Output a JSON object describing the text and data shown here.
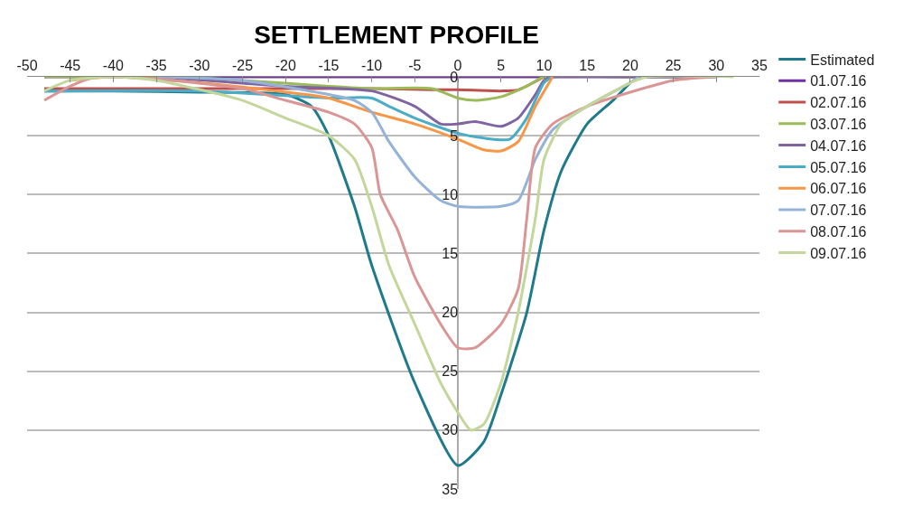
{
  "chart_data": {
    "type": "line",
    "title": "SETTLEMENT PROFILE",
    "xlim": [
      -50,
      35
    ],
    "xticks": [
      -50,
      -45,
      -40,
      -35,
      -30,
      -25,
      -20,
      -15,
      -10,
      -5,
      0,
      5,
      10,
      15,
      20,
      25,
      30,
      35
    ],
    "ylim": [
      35,
      0
    ],
    "yticks": [
      0,
      5,
      10,
      15,
      20,
      25,
      30,
      35
    ],
    "grid": "y",
    "legend": "right",
    "marker": "none",
    "line_style": "solid",
    "series": [
      {
        "name": "Estimated",
        "color": "#1f7a8c",
        "x": [
          -48,
          -40,
          -30,
          -20,
          -17,
          -15,
          -12,
          -10,
          -5,
          0,
          3,
          5,
          8,
          10,
          12,
          15,
          18,
          20
        ],
        "values": [
          1.2,
          1.2,
          1.3,
          1.5,
          2.5,
          5,
          11,
          16,
          26,
          33,
          31,
          27,
          20,
          13,
          8,
          4,
          2,
          0.5
        ]
      },
      {
        "name": "01.07.16",
        "color": "#7030a0",
        "x": [
          -48,
          -30,
          -10,
          0,
          10,
          20,
          30
        ],
        "values": [
          0,
          0,
          0,
          0,
          0,
          0,
          0
        ]
      },
      {
        "name": "02.07.16",
        "color": "#c0504d",
        "x": [
          -48,
          -30,
          -10,
          -3,
          0,
          5,
          7,
          10
        ],
        "values": [
          1,
          1,
          1,
          1.1,
          1.1,
          1.2,
          1.1,
          0
        ]
      },
      {
        "name": "03.07.16",
        "color": "#9bbb59",
        "x": [
          -48,
          -35,
          -25,
          -15,
          -10,
          -3,
          0,
          2,
          5,
          8,
          10,
          20,
          30
        ],
        "values": [
          0,
          0,
          0.3,
          0.8,
          1,
          1,
          1.8,
          2,
          1.7,
          0.8,
          0,
          0,
          0
        ]
      },
      {
        "name": "04.07.16",
        "color": "#8064a2",
        "x": [
          -35,
          -20,
          -10,
          -5,
          -2,
          0,
          2,
          5,
          7,
          9,
          10,
          11,
          20,
          28
        ],
        "values": [
          0,
          0.8,
          1.2,
          2.5,
          4,
          4,
          3.8,
          4.2,
          3.5,
          1.5,
          0.3,
          0,
          0,
          0
        ]
      },
      {
        "name": "05.07.16",
        "color": "#4bacc6",
        "x": [
          -48,
          -30,
          -15,
          -10,
          -8,
          -5,
          0,
          3,
          6,
          8,
          10,
          11
        ],
        "values": [
          1.2,
          1.2,
          1.8,
          1.8,
          2.5,
          3.5,
          4.8,
          5.2,
          5.3,
          3.5,
          0.5,
          0
        ]
      },
      {
        "name": "06.07.16",
        "color": "#f79646",
        "x": [
          -45,
          -40,
          -30,
          -20,
          -15,
          -10,
          -5,
          0,
          3,
          5,
          7,
          9,
          11
        ],
        "values": [
          0.3,
          0,
          0.5,
          1.3,
          1.8,
          3,
          4,
          5.3,
          6.2,
          6.3,
          5.5,
          2.5,
          0
        ]
      },
      {
        "name": "07.07.16",
        "color": "#95b3d7",
        "x": [
          -35,
          -25,
          -15,
          -12,
          -10,
          -8,
          -5,
          -2,
          0,
          5,
          7,
          9,
          11,
          15,
          20,
          21
        ],
        "values": [
          0,
          0.3,
          1.5,
          2,
          3,
          5.5,
          8.5,
          10.5,
          11,
          11,
          10.5,
          7,
          4.5,
          2.5,
          0.5,
          0
        ]
      },
      {
        "name": "08.07.16",
        "color": "#d99694",
        "x": [
          -48,
          -45,
          -42,
          -35,
          -25,
          -20,
          -15,
          -12,
          -10,
          -9,
          -7,
          -5,
          -2,
          0,
          2,
          5,
          7,
          8,
          9,
          11,
          15,
          20,
          25,
          30
        ],
        "values": [
          2,
          0.8,
          0,
          0.2,
          1,
          2,
          3,
          4,
          6,
          10,
          13,
          17,
          21,
          23,
          23,
          21,
          18,
          12,
          6,
          4,
          2.5,
          1.3,
          0.3,
          0
        ]
      },
      {
        "name": "09.07.16",
        "color": "#c3d69b",
        "x": [
          -48,
          -45,
          -40,
          -35,
          -25,
          -20,
          -15,
          -12,
          -10,
          -8,
          -5,
          -2,
          0,
          1.5,
          3,
          5,
          7,
          9,
          10,
          12,
          15,
          20,
          22,
          32
        ],
        "values": [
          1.2,
          0.3,
          0,
          0.3,
          2,
          3.5,
          5,
          7,
          11,
          16,
          21,
          26,
          28.5,
          30,
          29.5,
          26,
          20,
          12,
          7,
          4,
          2.5,
          0.5,
          0,
          0
        ]
      }
    ]
  }
}
